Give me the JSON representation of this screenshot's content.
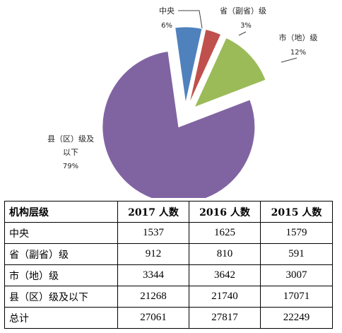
{
  "chart_data": {
    "type": "pie",
    "slices": [
      {
        "label": "中央",
        "percent_label": "6%",
        "value": 1537,
        "color": "#4f81bd"
      },
      {
        "label": "省（副省）级",
        "percent_label": "3%",
        "value": 912,
        "color": "#c0504d"
      },
      {
        "label": "市（地）级",
        "percent_label": "12%",
        "value": 3344,
        "color": "#9bbb59"
      },
      {
        "label": "县（区）级及以下",
        "label_lines": [
          "县（区）级及",
          "以下"
        ],
        "percent_label": "79%",
        "value": 21268,
        "color": "#8064a2"
      }
    ],
    "exploded": true,
    "legend": "none"
  },
  "table": {
    "headers": [
      "机构层级",
      "2017 人数",
      "2016 人数",
      "2015 人数"
    ],
    "rows": [
      [
        "中央",
        "1537",
        "1625",
        "1579"
      ],
      [
        "省（副省）级",
        "912",
        "810",
        "591"
      ],
      [
        "市（地）级",
        "3344",
        "3642",
        "3007"
      ],
      [
        "县（区）级及以下",
        "21268",
        "21740",
        "17071"
      ],
      [
        "总计",
        "27061",
        "27817",
        "22249"
      ]
    ]
  }
}
